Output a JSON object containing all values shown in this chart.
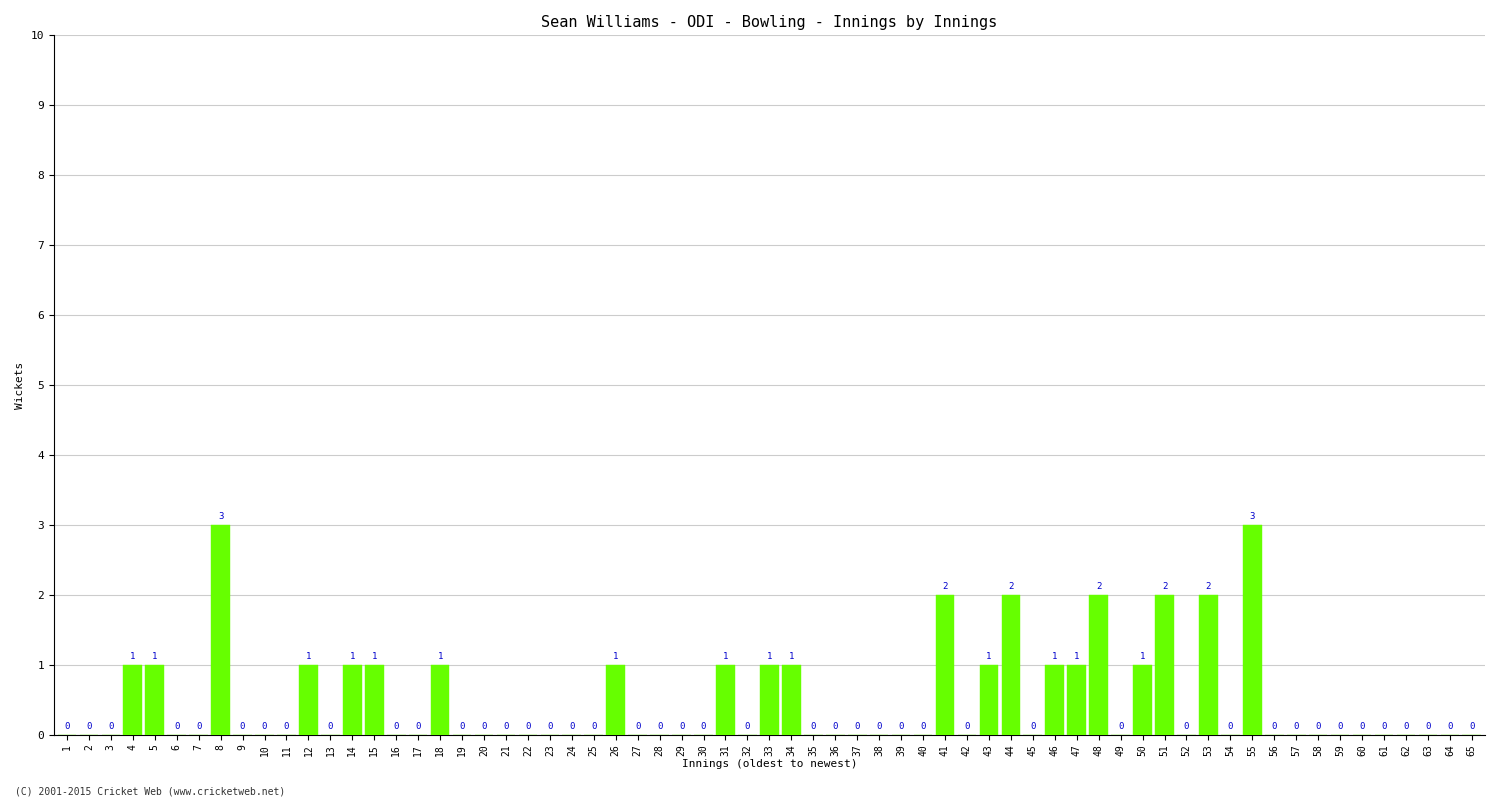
{
  "title": "Sean Williams - ODI - Bowling - Innings by Innings",
  "xlabel": "Innings (oldest to newest)",
  "ylabel": "Wickets",
  "background_color": "#ffffff",
  "bar_color": "#66ff00",
  "label_color": "#0000cc",
  "grid_color": "#cccccc",
  "ylim": [
    0,
    10
  ],
  "yticks": [
    0,
    1,
    2,
    3,
    4,
    5,
    6,
    7,
    8,
    9,
    10
  ],
  "copyright": "(C) 2001-2015 Cricket Web (www.cricketweb.net)",
  "innings": [
    1,
    2,
    3,
    4,
    5,
    6,
    7,
    8,
    9,
    10,
    11,
    12,
    13,
    14,
    15,
    16,
    17,
    18,
    19,
    20,
    21,
    22,
    23,
    24,
    25,
    26,
    27,
    28,
    29,
    30,
    31,
    32,
    33,
    34,
    35,
    36,
    37,
    38,
    39,
    40,
    41,
    42,
    43,
    44,
    45,
    46,
    47,
    48,
    49,
    50,
    51,
    52,
    53,
    54,
    55,
    56,
    57,
    58,
    59,
    60,
    61,
    62,
    63,
    64,
    65
  ],
  "wickets": [
    0,
    0,
    0,
    1,
    1,
    0,
    0,
    3,
    0,
    0,
    0,
    1,
    0,
    1,
    1,
    0,
    0,
    1,
    0,
    0,
    0,
    0,
    0,
    0,
    0,
    1,
    0,
    0,
    0,
    0,
    1,
    0,
    1,
    1,
    0,
    0,
    0,
    0,
    0,
    0,
    2,
    0,
    1,
    2,
    0,
    1,
    1,
    2,
    0,
    1,
    2,
    0,
    2,
    0,
    3,
    0,
    0,
    0,
    0,
    0,
    0,
    0,
    0,
    0,
    0
  ],
  "title_fontsize": 11,
  "axis_fontsize": 8,
  "tick_fontsize": 7,
  "label_fontsize": 6.5,
  "copyright_fontsize": 7,
  "bar_width": 0.85
}
